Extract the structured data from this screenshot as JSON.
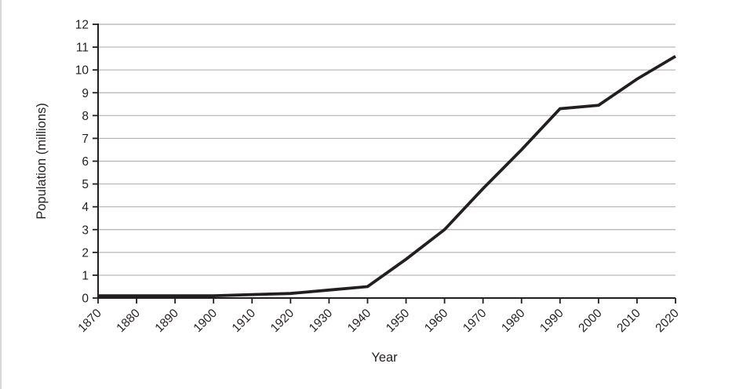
{
  "chart_data": {
    "type": "line",
    "title": "",
    "xlabel": "Year",
    "ylabel": "Population (millions)",
    "x": [
      1870,
      1880,
      1890,
      1900,
      1910,
      1920,
      1930,
      1940,
      1950,
      1960,
      1970,
      1980,
      1990,
      2000,
      2010,
      2020
    ],
    "series": [
      {
        "name": "Population",
        "values": [
          0.1,
          0.1,
          0.1,
          0.1,
          0.15,
          0.2,
          0.35,
          0.5,
          1.7,
          3.0,
          4.8,
          6.5,
          8.3,
          8.45,
          9.6,
          10.6
        ]
      }
    ],
    "xlim": [
      1870,
      2020
    ],
    "ylim": [
      0,
      12
    ],
    "x_tick_interval": 10,
    "y_tick_interval": 1,
    "x_tick_labels": [
      "1870",
      "1880",
      "1890",
      "1900",
      "1910",
      "1920",
      "1930",
      "1940",
      "1950",
      "1960",
      "1970",
      "1980",
      "1990",
      "2000",
      "2010",
      "2020"
    ],
    "y_tick_labels": [
      "0",
      "1",
      "2",
      "3",
      "4",
      "5",
      "6",
      "7",
      "8",
      "9",
      "10",
      "11",
      "12"
    ],
    "grid": "horizontal",
    "legend_position": "none",
    "colors": {
      "line": "#231f20",
      "axis": "#231f20",
      "grid": "#b2b2b2",
      "text": "#231f20",
      "background": "#ffffff"
    }
  }
}
